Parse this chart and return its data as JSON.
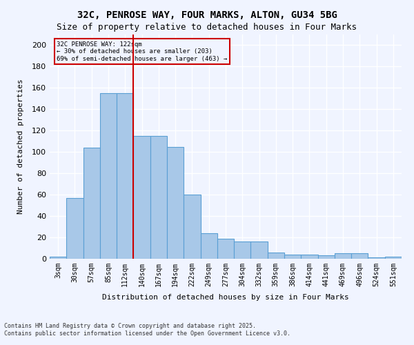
{
  "title_line1": "32C, PENROSE WAY, FOUR MARKS, ALTON, GU34 5BG",
  "title_line2": "Size of property relative to detached houses in Four Marks",
  "xlabel": "Distribution of detached houses by size in Four Marks",
  "ylabel": "Number of detached properties",
  "categories": [
    "3sqm",
    "30sqm",
    "57sqm",
    "85sqm",
    "112sqm",
    "140sqm",
    "167sqm",
    "194sqm",
    "222sqm",
    "249sqm",
    "277sqm",
    "304sqm",
    "332sqm",
    "359sqm",
    "386sqm",
    "414sqm",
    "441sqm",
    "469sqm",
    "496sqm",
    "524sqm",
    "551sqm"
  ],
  "values": [
    2,
    57,
    104,
    155,
    155,
    115,
    115,
    105,
    60,
    24,
    19,
    16,
    16,
    6,
    4,
    4,
    3,
    5,
    5,
    1,
    2
  ],
  "bar_color": "#a8c8e8",
  "bar_edge_color": "#5a9fd4",
  "vline_x": 4.5,
  "vline_color": "#cc0000",
  "annotation_title": "32C PENROSE WAY: 122sqm",
  "annotation_line2": "← 30% of detached houses are smaller (203)",
  "annotation_line3": "69% of semi-detached houses are larger (463) →",
  "annotation_box_color": "#cc0000",
  "ylim": [
    0,
    210
  ],
  "yticks": [
    0,
    20,
    40,
    60,
    80,
    100,
    120,
    140,
    160,
    180,
    200
  ],
  "background_color": "#f0f4ff",
  "grid_color": "#ffffff",
  "footer_line1": "Contains HM Land Registry data © Crown copyright and database right 2025.",
  "footer_line2": "Contains public sector information licensed under the Open Government Licence v3.0."
}
